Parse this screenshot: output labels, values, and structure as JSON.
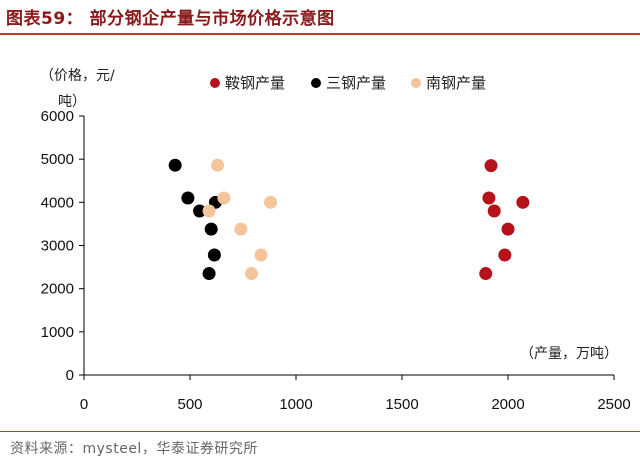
{
  "header": {
    "title": "图表59：   部分钢企产量与市场价格示意图"
  },
  "footer": {
    "source": "资料来源：mysteel，华泰证券研究所"
  },
  "chart_data": {
    "type": "scatter",
    "title": "部分钢企产量与市场价格示意图",
    "ylabel_line1": "（价格，元/",
    "ylabel_line2": "吨）",
    "xlabel": "（产量，万吨）",
    "xlim": [
      0,
      2500
    ],
    "ylim": [
      0,
      6000
    ],
    "xticks": [
      0,
      500,
      1000,
      1500,
      2000,
      2500
    ],
    "yticks": [
      0,
      1000,
      2000,
      3000,
      4000,
      5000,
      6000
    ],
    "grid": false,
    "legend_position": "top",
    "series": [
      {
        "name": "鞍钢产量",
        "color": "#b5121b",
        "points": [
          {
            "x": 1920,
            "y": 4850
          },
          {
            "x": 1910,
            "y": 4100
          },
          {
            "x": 1935,
            "y": 3800
          },
          {
            "x": 2070,
            "y": 4000
          },
          {
            "x": 2000,
            "y": 3380
          },
          {
            "x": 1985,
            "y": 2780
          },
          {
            "x": 1895,
            "y": 2350
          }
        ]
      },
      {
        "name": "三钢产量",
        "color": "#000000",
        "points": [
          {
            "x": 430,
            "y": 4860
          },
          {
            "x": 490,
            "y": 4100
          },
          {
            "x": 545,
            "y": 3800
          },
          {
            "x": 620,
            "y": 4000
          },
          {
            "x": 600,
            "y": 3380
          },
          {
            "x": 615,
            "y": 2780
          },
          {
            "x": 590,
            "y": 2350
          }
        ]
      },
      {
        "name": "南钢产量",
        "color": "#f4c49a",
        "points": [
          {
            "x": 630,
            "y": 4860
          },
          {
            "x": 660,
            "y": 4100
          },
          {
            "x": 590,
            "y": 3800
          },
          {
            "x": 880,
            "y": 4000
          },
          {
            "x": 740,
            "y": 3380
          },
          {
            "x": 835,
            "y": 2780
          },
          {
            "x": 790,
            "y": 2350
          }
        ]
      }
    ]
  }
}
